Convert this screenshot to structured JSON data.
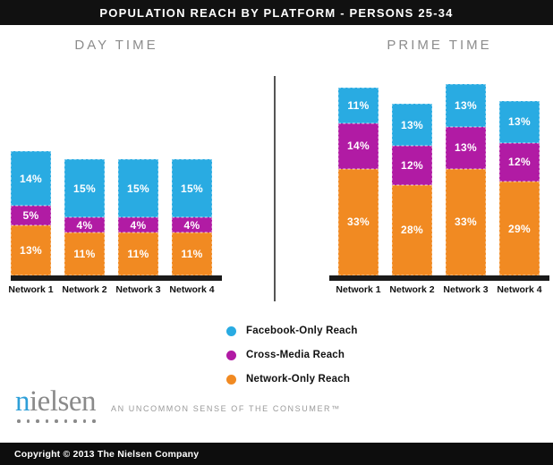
{
  "title_bar": {
    "text": "POPULATION REACH BY PLATFORM - PERSONS 25-34"
  },
  "colors": {
    "facebook_blue": "#29ABE2",
    "cross_magenta": "#B11BA4",
    "network_orange": "#F18A22",
    "titlebar_black": "#111111",
    "baseline_black": "#1A1A1A",
    "header_gray": "#8C8C8C"
  },
  "chart_data": [
    {
      "type": "bar",
      "stacked": true,
      "title": "DAY TIME",
      "categories": [
        "Network 1",
        "Network 2",
        "Network 3",
        "Network 4"
      ],
      "series": [
        {
          "name": "Network-Only Reach",
          "color_key": "network_orange",
          "values": [
            13,
            11,
            11,
            11
          ]
        },
        {
          "name": "Cross-Media Reach",
          "color_key": "cross_magenta",
          "values": [
            5,
            4,
            4,
            4
          ]
        },
        {
          "name": "Facebook-Only Reach",
          "color_key": "facebook_blue",
          "values": [
            14,
            15,
            15,
            15
          ]
        }
      ],
      "value_suffix": "%",
      "ylabel": "",
      "xlabel": "",
      "grid": false,
      "data_labels": "inside-white"
    },
    {
      "type": "bar",
      "stacked": true,
      "title": "PRIME TIME",
      "categories": [
        "Network 1",
        "Network 2",
        "Network 3",
        "Network 4"
      ],
      "series": [
        {
          "name": "Network-Only Reach",
          "color_key": "network_orange",
          "values": [
            33,
            28,
            33,
            29
          ]
        },
        {
          "name": "Cross-Media Reach",
          "color_key": "cross_magenta",
          "values": [
            14,
            12,
            13,
            12
          ]
        },
        {
          "name": "Facebook-Only Reach",
          "color_key": "facebook_blue",
          "values": [
            11,
            13,
            13,
            13
          ]
        }
      ],
      "value_suffix": "%",
      "ylabel": "",
      "xlabel": "",
      "grid": false,
      "data_labels": "inside-white"
    }
  ],
  "legend": {
    "items": [
      {
        "label": "Facebook-Only Reach",
        "color_key": "facebook_blue"
      },
      {
        "label": "Cross-Media Reach",
        "color_key": "cross_magenta"
      },
      {
        "label": "Network-Only Reach",
        "color_key": "network_orange"
      }
    ]
  },
  "footer": {
    "logo_text": "nielsen",
    "tagline": "AN UNCOMMON SENSE OF THE CONSUMER™",
    "copyright": "Copyright © 2013 The Nielsen Company"
  }
}
